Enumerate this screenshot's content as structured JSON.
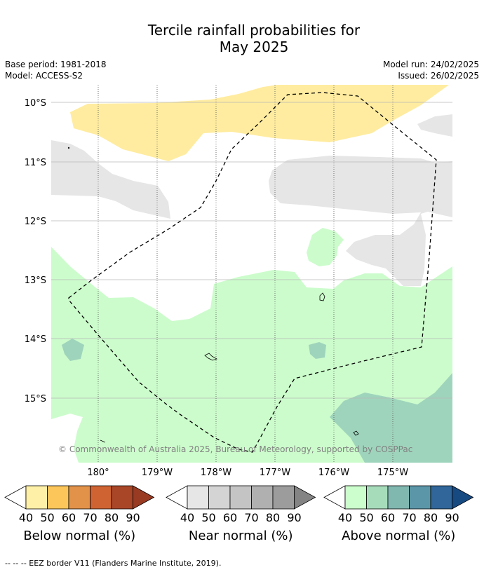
{
  "title_line1": "Tercile rainfall probabilities for",
  "title_line2": "May 2025",
  "base_period": "Base period: 1981-2018",
  "model": "Model: ACCESS-S2",
  "model_run": "Model run: 24/02/2025",
  "issued": "Issued: 26/02/2025",
  "lat_labels": [
    "10°S",
    "11°S",
    "12°S",
    "13°S",
    "14°S",
    "15°S"
  ],
  "lon_labels": [
    "180°",
    "179°W",
    "178°W",
    "177°W",
    "176°W",
    "175°W"
  ],
  "copyright": "© Commonwealth of Australia 2025, Bureau of Meteorology, supported by COSPPac",
  "colorbars": [
    {
      "label": "Below normal (%)",
      "ticks": [
        "40",
        "50",
        "60",
        "70",
        "80",
        "90"
      ],
      "colors": [
        "#fff0a8",
        "#fdc65a",
        "#e3924a",
        "#cf6432",
        "#aa4628",
        "#993a22"
      ]
    },
    {
      "label": "Near normal (%)",
      "ticks": [
        "40",
        "50",
        "60",
        "70",
        "80",
        "90"
      ],
      "colors": [
        "#e6e6e6",
        "#d4d4d4",
        "#c4c4c4",
        "#b0b0b0",
        "#9c9c9c",
        "#848484"
      ]
    },
    {
      "label": "Above normal (%)",
      "ticks": [
        "40",
        "50",
        "60",
        "70",
        "80",
        "90"
      ],
      "colors": [
        "#ccfdcc",
        "#a7dcbb",
        "#80b8b0",
        "#5a96a8",
        "#30669a",
        "#184a82"
      ]
    }
  ],
  "footnote": "--  --  -- EEZ border V11 (Flanders Marine Institute, 2019).",
  "colors": {
    "below_normal_light": "#ffeca0",
    "near_normal_light": "#e6e6e6",
    "above_normal_light": "#ccfccc",
    "above_normal_mid": "#9fd4bc"
  }
}
